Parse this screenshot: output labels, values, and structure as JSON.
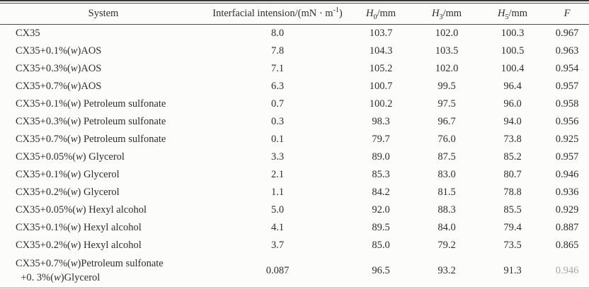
{
  "table": {
    "columns": [
      {
        "name": "system",
        "parts": [
          {
            "t": "System"
          }
        ]
      },
      {
        "name": "interfacial_tension",
        "parts": [
          {
            "t": "Interfacial intension/(mN · m"
          },
          {
            "t": "-1",
            "sup": true
          },
          {
            "t": ")"
          }
        ]
      },
      {
        "name": "h0",
        "parts": [
          {
            "t": "H",
            "i": true
          },
          {
            "t": "0",
            "sub": true
          },
          {
            "t": "/mm"
          }
        ]
      },
      {
        "name": "h3",
        "parts": [
          {
            "t": "H",
            "i": true
          },
          {
            "t": "3",
            "sub": true
          },
          {
            "t": "/mm"
          }
        ]
      },
      {
        "name": "h5",
        "parts": [
          {
            "t": "H",
            "i": true
          },
          {
            "t": "5",
            "sub": true
          },
          {
            "t": "/mm"
          }
        ]
      },
      {
        "name": "f",
        "parts": [
          {
            "t": "F",
            "i": true
          }
        ]
      }
    ],
    "rows": [
      {
        "system_parts": [
          {
            "t": "CX35"
          }
        ],
        "tension": "8.0",
        "h0": "103.7",
        "h3": "102.0",
        "h5": "100.3",
        "f": "0.967"
      },
      {
        "system_parts": [
          {
            "t": "CX35+0.1%("
          },
          {
            "t": "w",
            "i": true
          },
          {
            "t": ")AOS"
          }
        ],
        "tension": "7.8",
        "h0": "104.3",
        "h3": "103.5",
        "h5": "100.5",
        "f": "0.963"
      },
      {
        "system_parts": [
          {
            "t": "CX35+0.3%("
          },
          {
            "t": "w",
            "i": true
          },
          {
            "t": ")AOS"
          }
        ],
        "tension": "7.1",
        "h0": "105.2",
        "h3": "102.0",
        "h5": "100.4",
        "f": "0.954"
      },
      {
        "system_parts": [
          {
            "t": "CX35+0.7%("
          },
          {
            "t": "w",
            "i": true
          },
          {
            "t": ")AOS"
          }
        ],
        "tension": "6.3",
        "h0": "100.7",
        "h3": "99.5",
        "h5": "96.4",
        "f": "0.957"
      },
      {
        "system_parts": [
          {
            "t": "CX35+0.1%("
          },
          {
            "t": "w",
            "i": true
          },
          {
            "t": ") Petroleum sulfonate"
          }
        ],
        "tension": "0.7",
        "h0": "100.2",
        "h3": "97.5",
        "h5": "96.0",
        "f": "0.958"
      },
      {
        "system_parts": [
          {
            "t": "CX35+0.3%("
          },
          {
            "t": "w",
            "i": true
          },
          {
            "t": ") Petroleum sulfonate"
          }
        ],
        "tension": "0.3",
        "h0": "98.3",
        "h3": "96.7",
        "h5": "94.0",
        "f": "0.956"
      },
      {
        "system_parts": [
          {
            "t": "CX35+0.7%("
          },
          {
            "t": "w",
            "i": true
          },
          {
            "t": ") Petroleum sulfonate"
          }
        ],
        "tension": "0.1",
        "h0": "79.7",
        "h3": "76.0",
        "h5": "73.8",
        "f": "0.925"
      },
      {
        "system_parts": [
          {
            "t": "CX35+0.05%("
          },
          {
            "t": "w",
            "i": true
          },
          {
            "t": ") Glycerol"
          }
        ],
        "tension": "3.3",
        "h0": "89.0",
        "h3": "87.5",
        "h5": "85.2",
        "f": "0.957"
      },
      {
        "system_parts": [
          {
            "t": "CX35+0.1%("
          },
          {
            "t": "w",
            "i": true
          },
          {
            "t": ") Glycerol"
          }
        ],
        "tension": "2.1",
        "h0": "85.3",
        "h3": "83.0",
        "h5": "80.7",
        "f": "0.946"
      },
      {
        "system_parts": [
          {
            "t": "CX35+0.2%("
          },
          {
            "t": "w",
            "i": true
          },
          {
            "t": ") Glycerol"
          }
        ],
        "tension": "1.1",
        "h0": "84.2",
        "h3": "81.5",
        "h5": "78.8",
        "f": "0.936"
      },
      {
        "system_parts": [
          {
            "t": "CX35+0.05%("
          },
          {
            "t": "w",
            "i": true
          },
          {
            "t": ") Hexyl alcohol"
          }
        ],
        "tension": "5.0",
        "h0": "92.0",
        "h3": "88.3",
        "h5": "85.5",
        "f": "0.929"
      },
      {
        "system_parts": [
          {
            "t": "CX35+0.1%("
          },
          {
            "t": "w",
            "i": true
          },
          {
            "t": ") Hexyl alcohol"
          }
        ],
        "tension": "4.1",
        "h0": "89.5",
        "h3": "84.0",
        "h5": "79.4",
        "f": "0.887"
      },
      {
        "system_parts": [
          {
            "t": "CX35+0.2%("
          },
          {
            "t": "w",
            "i": true
          },
          {
            "t": ") Hexyl alcohol"
          }
        ],
        "tension": "3.7",
        "h0": "85.0",
        "h3": "79.2",
        "h5": "73.5",
        "f": "0.865"
      },
      {
        "tall": true,
        "system_parts": [
          {
            "t": "CX35+0.7%("
          },
          {
            "t": "w",
            "i": true
          },
          {
            "t": ")Petroleum sulfonate"
          },
          {
            "br": true
          },
          {
            "t": "  +0. 3%("
          },
          {
            "t": "w",
            "i": true
          },
          {
            "t": ")Glycerol"
          }
        ],
        "tension": "0.087",
        "h0": "96.5",
        "h3": "93.2",
        "h5": "91.3",
        "f": "0.946",
        "f_faded": true
      }
    ]
  }
}
